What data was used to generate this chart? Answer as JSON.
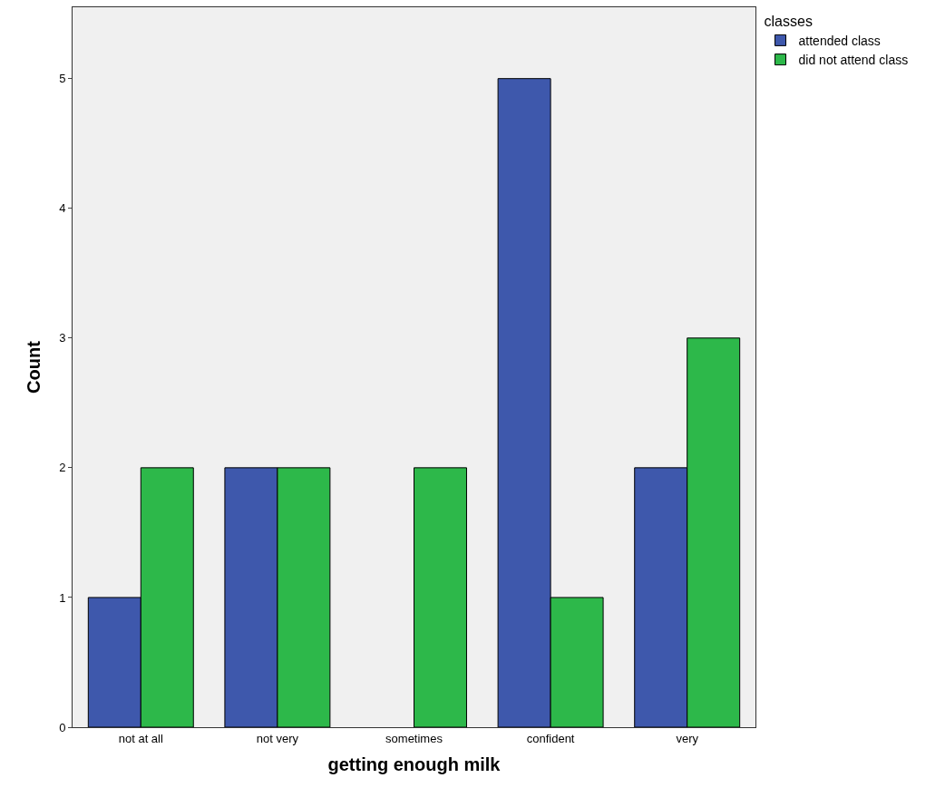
{
  "chart_data": {
    "type": "bar",
    "xlabel": "getting enough milk",
    "ylabel": "Count",
    "legend_title": "classes",
    "categories": [
      "not at all",
      "not very",
      "sometimes",
      "confident",
      "very"
    ],
    "series": [
      {
        "name": "attended class",
        "color": "#3e58ac",
        "values": [
          1,
          2,
          0,
          5,
          2
        ]
      },
      {
        "name": "did not attend class",
        "color": "#2db84a",
        "values": [
          2,
          2,
          2,
          1,
          3
        ]
      }
    ],
    "ylim": [
      0,
      5.55
    ],
    "yticks": [
      0,
      1,
      2,
      3,
      4,
      5
    ],
    "grid": false,
    "legend": "top right"
  }
}
